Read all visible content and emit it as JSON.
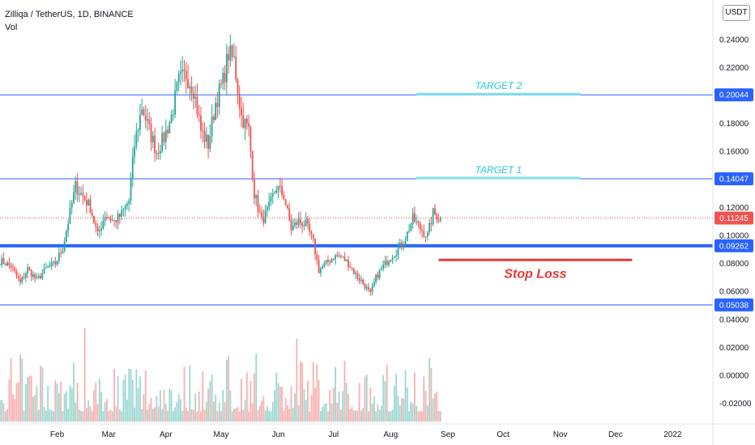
{
  "header": {
    "title": "Zilliqa / TetherUS, 1D, BINANCE",
    "indicator": "Vol"
  },
  "currency_button": "USDT",
  "colors": {
    "up": "#26a69a",
    "down": "#ef5350",
    "level_line": "#2962ff",
    "target": "#80deea",
    "target_text": "#26c6da",
    "stop": "#e53935",
    "current_price": "#ef5350"
  },
  "chart_data": {
    "type": "candlestick",
    "title": "Zilliqa / TetherUS, 1D, BINANCE",
    "y_axis": {
      "range": [
        -0.033,
        0.26
      ],
      "ticks": [
        "-0.02000",
        "0.00000",
        "0.02000",
        "0.04000",
        "0.06000",
        "0.08000",
        "0.10000",
        "0.12000",
        "0.14000",
        "0.16000",
        "0.18000",
        "0.20000",
        "0.22000",
        "0.24000"
      ],
      "position": "right"
    },
    "x_axis": {
      "ticks": [
        "Feb",
        "Mar",
        "Apr",
        "May",
        "Jun",
        "Jul",
        "Aug",
        "Sep",
        "Oct",
        "Nov",
        "Dec",
        "2022"
      ]
    },
    "levels": [
      {
        "label": "0.20044",
        "value": 0.20044,
        "style": "thin"
      },
      {
        "label": "0.14047",
        "value": 0.14047,
        "style": "thin"
      },
      {
        "label": "0.09262",
        "value": 0.09262,
        "style": "thick"
      },
      {
        "label": "0.05038",
        "value": 0.05038,
        "style": "thin"
      }
    ],
    "current_price": {
      "label": "0.11245",
      "value": 0.11245
    },
    "annotations": [
      {
        "text": "TARGET 2",
        "value": 0.20044,
        "start": "2021-08-15",
        "end": "2021-11-12",
        "kind": "target"
      },
      {
        "text": "TARGET 1",
        "value": 0.14047,
        "start": "2021-08-15",
        "end": "2021-11-12",
        "kind": "target"
      },
      {
        "text": "Stop Loss",
        "value": 0.0825,
        "start": "2021-08-27",
        "end": "2021-12-10",
        "kind": "stop"
      }
    ],
    "price_path": [
      [
        "2021-01-01",
        0.082
      ],
      [
        "2021-01-07",
        0.078
      ],
      [
        "2021-01-12",
        0.066
      ],
      [
        "2021-01-16",
        0.076
      ],
      [
        "2021-01-21",
        0.068
      ],
      [
        "2021-01-26",
        0.076
      ],
      [
        "2021-01-31",
        0.08
      ],
      [
        "2021-02-04",
        0.091
      ],
      [
        "2021-02-07",
        0.11
      ],
      [
        "2021-02-11",
        0.135
      ],
      [
        "2021-02-15",
        0.128
      ],
      [
        "2021-02-19",
        0.12
      ],
      [
        "2021-02-23",
        0.1
      ],
      [
        "2021-02-27",
        0.115
      ],
      [
        "2021-03-04",
        0.11
      ],
      [
        "2021-03-08",
        0.115
      ],
      [
        "2021-03-12",
        0.125
      ],
      [
        "2021-03-15",
        0.165
      ],
      [
        "2021-03-19",
        0.192
      ],
      [
        "2021-03-23",
        0.175
      ],
      [
        "2021-03-27",
        0.16
      ],
      [
        "2021-03-31",
        0.17
      ],
      [
        "2021-04-04",
        0.185
      ],
      [
        "2021-04-08",
        0.21
      ],
      [
        "2021-04-12",
        0.215
      ],
      [
        "2021-04-16",
        0.205
      ],
      [
        "2021-04-20",
        0.175
      ],
      [
        "2021-04-24",
        0.165
      ],
      [
        "2021-04-28",
        0.195
      ],
      [
        "2021-05-02",
        0.21
      ],
      [
        "2021-05-05",
        0.23
      ],
      [
        "2021-05-08",
        0.225
      ],
      [
        "2021-05-12",
        0.185
      ],
      [
        "2021-05-16",
        0.175
      ],
      [
        "2021-05-19",
        0.13
      ],
      [
        "2021-05-23",
        0.11
      ],
      [
        "2021-05-27",
        0.12
      ],
      [
        "2021-05-31",
        0.135
      ],
      [
        "2021-06-04",
        0.128
      ],
      [
        "2021-06-08",
        0.105
      ],
      [
        "2021-06-12",
        0.11
      ],
      [
        "2021-06-16",
        0.108
      ],
      [
        "2021-06-20",
        0.095
      ],
      [
        "2021-06-23",
        0.075
      ],
      [
        "2021-06-27",
        0.08
      ],
      [
        "2021-07-01",
        0.085
      ],
      [
        "2021-07-05",
        0.085
      ],
      [
        "2021-07-09",
        0.08
      ],
      [
        "2021-07-13",
        0.072
      ],
      [
        "2021-07-17",
        0.066
      ],
      [
        "2021-07-21",
        0.058
      ],
      [
        "2021-07-24",
        0.07
      ],
      [
        "2021-07-28",
        0.078
      ],
      [
        "2021-08-01",
        0.085
      ],
      [
        "2021-08-05",
        0.09
      ],
      [
        "2021-08-09",
        0.098
      ],
      [
        "2021-08-13",
        0.112
      ],
      [
        "2021-08-17",
        0.105
      ],
      [
        "2021-08-21",
        0.1
      ],
      [
        "2021-08-24",
        0.116
      ],
      [
        "2021-08-28",
        0.112
      ]
    ],
    "volume_range": [
      -0.033,
      0.045
    ]
  }
}
